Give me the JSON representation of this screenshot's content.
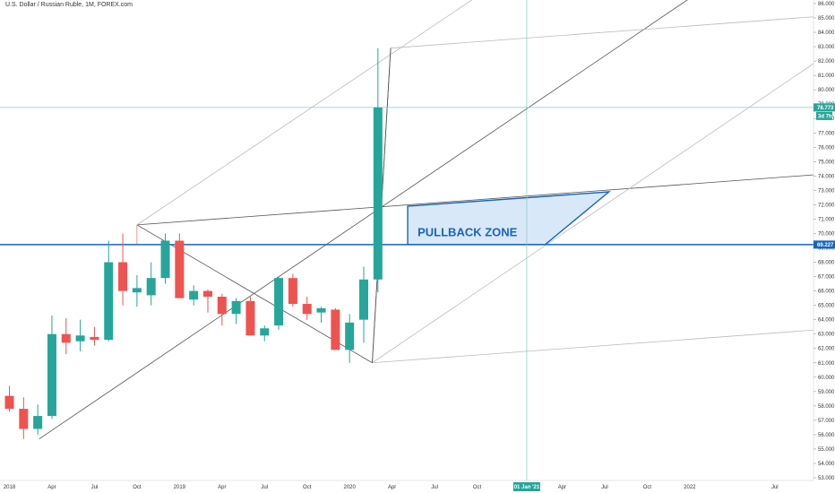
{
  "header": {
    "title": "U.S. Dollar / Russian Ruble, 1M, FOREX.com"
  },
  "colors": {
    "up": "#26a69a",
    "down": "#ef5350",
    "hline": "#1565c0",
    "zone_fill": "#cfe2f7",
    "zone_stroke": "#1565c0",
    "grid_line": "#555555",
    "light_line": "#bbbbbb",
    "crosshair": "#80cbc4"
  },
  "chart_data": {
    "type": "candlestick",
    "title": "U.S. Dollar / Russian Ruble, 1M, FOREX.com",
    "timeframe": "1M",
    "ylim": [
      53,
      86
    ],
    "y_ticks": [
      "53.000",
      "54.000",
      "55.000",
      "56.000",
      "57.000",
      "58.000",
      "59.000",
      "60.000",
      "61.000",
      "62.000",
      "63.000",
      "64.000",
      "65.000",
      "66.000",
      "67.000",
      "68.000",
      "69.000",
      "70.000",
      "71.000",
      "72.000",
      "73.000",
      "74.000",
      "75.000",
      "76.000",
      "77.000",
      "78.000",
      "79.000",
      "80.000",
      "81.000",
      "82.000",
      "83.000",
      "84.000",
      "85.000",
      "86.000"
    ],
    "x_ticks": [
      {
        "label": "2018",
        "i": 0
      },
      {
        "label": "Apr",
        "i": 3
      },
      {
        "label": "Jul",
        "i": 6
      },
      {
        "label": "Oct",
        "i": 9
      },
      {
        "label": "2019",
        "i": 12
      },
      {
        "label": "Apr",
        "i": 15
      },
      {
        "label": "Jul",
        "i": 18
      },
      {
        "label": "Oct",
        "i": 21
      },
      {
        "label": "2020",
        "i": 24
      },
      {
        "label": "Apr",
        "i": 27
      },
      {
        "label": "Jul",
        "i": 30
      },
      {
        "label": "Oct",
        "i": 33
      },
      {
        "label": "Apr",
        "i": 39
      },
      {
        "label": "Jul",
        "i": 42
      },
      {
        "label": "Oct",
        "i": 45
      },
      {
        "label": "2022",
        "i": 48
      },
      {
        "label": "Jul",
        "i": 54
      }
    ],
    "candles": [
      {
        "o": 58.7,
        "h": 59.4,
        "l": 57.6,
        "c": 57.8
      },
      {
        "o": 57.8,
        "h": 58.6,
        "l": 55.7,
        "c": 56.4
      },
      {
        "o": 56.4,
        "h": 58.1,
        "l": 56.0,
        "c": 57.3
      },
      {
        "o": 57.3,
        "h": 64.3,
        "l": 57.1,
        "c": 63.0
      },
      {
        "o": 63.0,
        "h": 64.1,
        "l": 61.6,
        "c": 62.4
      },
      {
        "o": 62.5,
        "h": 64.0,
        "l": 61.8,
        "c": 62.9
      },
      {
        "o": 62.8,
        "h": 63.5,
        "l": 62.2,
        "c": 62.6
      },
      {
        "o": 62.6,
        "h": 69.5,
        "l": 62.5,
        "c": 68.0
      },
      {
        "o": 68.0,
        "h": 70.0,
        "l": 65.0,
        "c": 66.0
      },
      {
        "o": 65.9,
        "h": 67.1,
        "l": 64.9,
        "c": 66.2
      },
      {
        "o": 65.7,
        "h": 68.0,
        "l": 65.0,
        "c": 66.9
      },
      {
        "o": 66.9,
        "h": 70.0,
        "l": 66.5,
        "c": 69.5
      },
      {
        "o": 69.5,
        "h": 70.0,
        "l": 65.5,
        "c": 65.5
      },
      {
        "o": 65.4,
        "h": 66.4,
        "l": 65.0,
        "c": 66.0
      },
      {
        "o": 66.0,
        "h": 66.1,
        "l": 64.5,
        "c": 65.6
      },
      {
        "o": 65.6,
        "h": 65.8,
        "l": 63.6,
        "c": 64.4
      },
      {
        "o": 64.4,
        "h": 65.5,
        "l": 63.7,
        "c": 65.3
      },
      {
        "o": 65.3,
        "h": 65.6,
        "l": 62.9,
        "c": 62.9
      },
      {
        "o": 62.9,
        "h": 63.6,
        "l": 62.5,
        "c": 63.4
      },
      {
        "o": 63.6,
        "h": 67.0,
        "l": 63.3,
        "c": 66.9
      },
      {
        "o": 66.9,
        "h": 67.2,
        "l": 64.9,
        "c": 65.1
      },
      {
        "o": 65.1,
        "h": 65.6,
        "l": 64.0,
        "c": 64.4
      },
      {
        "o": 64.5,
        "h": 64.9,
        "l": 63.8,
        "c": 64.8
      },
      {
        "o": 64.7,
        "h": 64.8,
        "l": 61.9,
        "c": 61.9
      },
      {
        "o": 61.9,
        "h": 64.4,
        "l": 61.0,
        "c": 63.8
      },
      {
        "o": 64.0,
        "h": 67.7,
        "l": 62.4,
        "c": 66.8
      },
      {
        "o": 66.8,
        "h": 82.9,
        "l": 65.9,
        "c": 78.77
      }
    ],
    "annotations": {
      "zone_label": "PULLBACK ZONE",
      "price_level": "69.227",
      "price_level_value": 69.227,
      "last_price": "78.773",
      "last_price_value": 78.773,
      "countdown": "3d 7h",
      "cursor_date": "01 Jan '21"
    }
  }
}
